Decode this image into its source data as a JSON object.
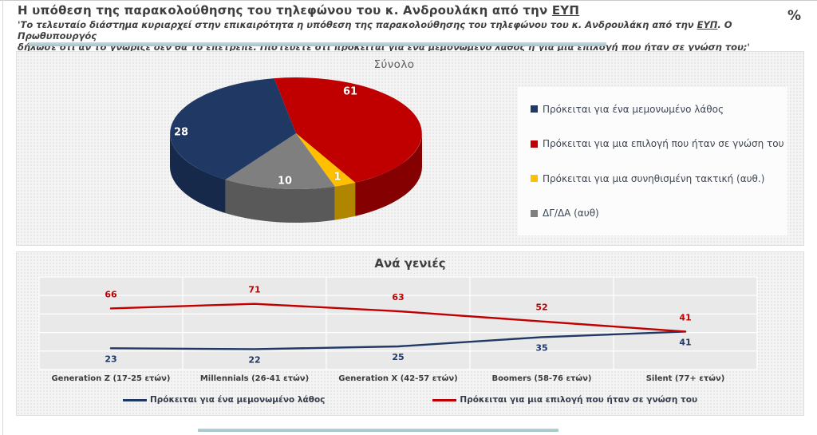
{
  "header": {
    "title_text": "Η υπόθεση της παρακολούθησης του τηλεφώνου του κ. Ανδρουλάκη από την ",
    "title_underlined": "ΕΥΠ",
    "subtitle_line1_pre": "'Το τελευταίο διάστημα κυριαρχεί στην επικαιρότητα η υπόθεση της παρακολούθησης του τηλεφώνου του κ. Ανδρουλάκη από την ",
    "subtitle_line1_eyp": "ΕΥΠ",
    "subtitle_line1_post": ". Ο Πρωθυπουργός",
    "subtitle_line2": "δήλωσε ότι αν το γνώριζε δεν θα το επέτρεπε. Πιστεύετε ότι πρόκειται για ένα μεμονωμένο λάθος ή για μια επιλογή που ήταν σε γνώση του;'",
    "unit_label": "%"
  },
  "chart_data": [
    {
      "type": "pie",
      "title": "Σύνολο",
      "slices": [
        {
          "label": "Πρόκειται για ένα μεμονωμένο λάθος",
          "value": 28,
          "color": "#1F3864",
          "side_color": "#16294B"
        },
        {
          "label": "Πρόκειται για μια επιλογή που ήταν σε γνώση του",
          "value": 61,
          "color": "#C00000",
          "side_color": "#850000"
        },
        {
          "label": "Πρόκειται για μια συνηθισμένη τακτική (αυθ.)",
          "value": 1,
          "color": "#FFC000",
          "side_color": "#B08600"
        },
        {
          "label": "ΔΓ/ΔΑ (αυθ)",
          "value": 10,
          "color": "#7F7F7F",
          "side_color": "#595959"
        }
      ],
      "legend_position": "right",
      "style": "3d"
    },
    {
      "type": "line",
      "title": "Ανά γενιές",
      "categories": [
        "Generation Z (17-25 ετών)",
        "Millennials (26-41 ετών)",
        "Generation X (42-57 ετών)",
        "Boomers (58-76 ετών)",
        "Silent (77+ ετών)"
      ],
      "series": [
        {
          "name": "Πρόκειται για ένα μεμονωμένο λάθος",
          "color": "#1F3864",
          "values": [
            23,
            22,
            25,
            35,
            41
          ]
        },
        {
          "name": "Πρόκειται για μια  επιλογή που ήταν σε γνώση του",
          "color": "#C00000",
          "values": [
            66,
            71,
            63,
            52,
            41
          ]
        }
      ],
      "ylim": [
        0,
        100
      ],
      "grid": true,
      "legend_position": "bottom"
    }
  ]
}
